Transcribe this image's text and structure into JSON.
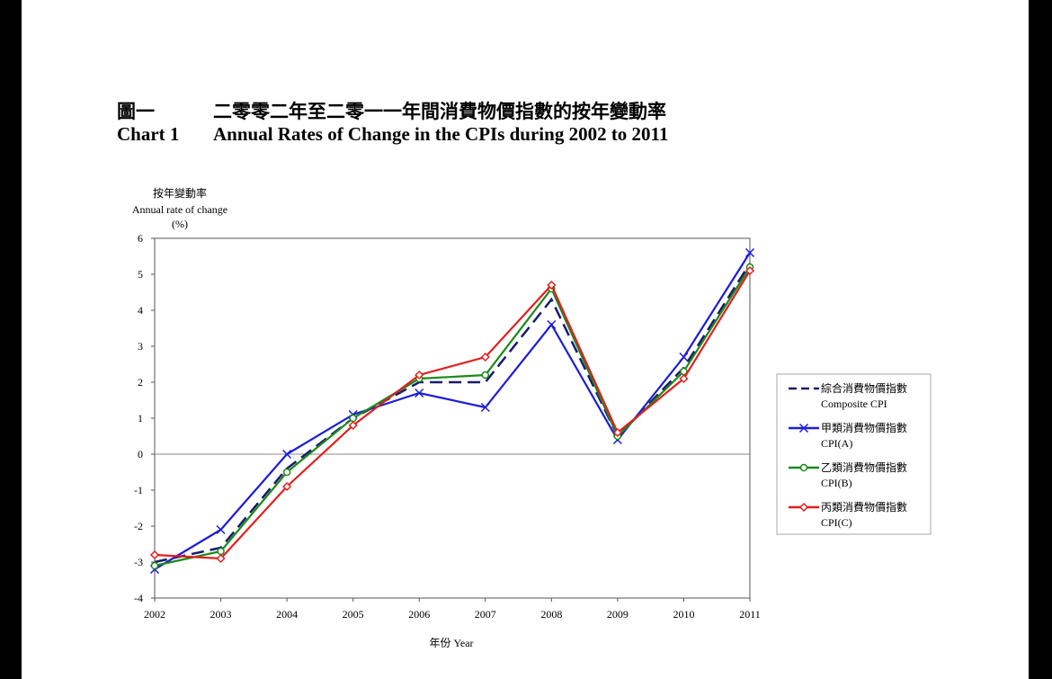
{
  "title": {
    "zh_number": "圖一",
    "zh_text": "二零零二年至二零一一年間消費物價指數的按年變動率",
    "en_number": "Chart 1",
    "en_text": "Annual Rates of Change in the CPIs during 2002 to 2011"
  },
  "chart_data": {
    "type": "line",
    "title": "Annual Rates of Change in the CPIs during 2002 to 2011",
    "ylabel_zh": "按年變動率",
    "ylabel": "Annual rate of change",
    "ylabel_unit": "(%)",
    "xlabel": "年份 Year",
    "x": [
      "2002",
      "2003",
      "2004",
      "2005",
      "2006",
      "2007",
      "2008",
      "2009",
      "2010",
      "2011"
    ],
    "ylim": [
      -4,
      6
    ],
    "yticks": [
      "6",
      "5",
      "4",
      "3",
      "2",
      "1",
      "0",
      "-1",
      "-2",
      "-3",
      "-4"
    ],
    "grid": false,
    "legend_position": "right",
    "series": [
      {
        "name_zh": "綜合消費物價指數",
        "name": "Composite CPI",
        "color": "#1a1a6e",
        "dash": "dashed",
        "marker": "none",
        "values": [
          -3.0,
          -2.6,
          -0.4,
          1.0,
          2.0,
          2.0,
          4.3,
          0.5,
          2.4,
          5.3
        ]
      },
      {
        "name_zh": "甲類消費物價指數",
        "name": "CPI(A)",
        "color": "#1c1cd8",
        "dash": "solid",
        "marker": "x",
        "values": [
          -3.2,
          -2.1,
          0.0,
          1.1,
          1.7,
          1.3,
          3.6,
          0.4,
          2.7,
          5.6
        ]
      },
      {
        "name_zh": "乙類消費物價指數",
        "name": "CPI(B)",
        "color": "#1a8a1a",
        "dash": "solid",
        "marker": "circle",
        "values": [
          -3.1,
          -2.7,
          -0.5,
          1.0,
          2.1,
          2.2,
          4.6,
          0.5,
          2.3,
          5.2
        ]
      },
      {
        "name_zh": "丙類消費物價指數",
        "name": "CPI(C)",
        "color": "#e21f1f",
        "dash": "solid",
        "marker": "diamond",
        "values": [
          -2.8,
          -2.9,
          -0.9,
          0.8,
          2.2,
          2.7,
          4.7,
          0.6,
          2.1,
          5.1
        ]
      }
    ]
  }
}
